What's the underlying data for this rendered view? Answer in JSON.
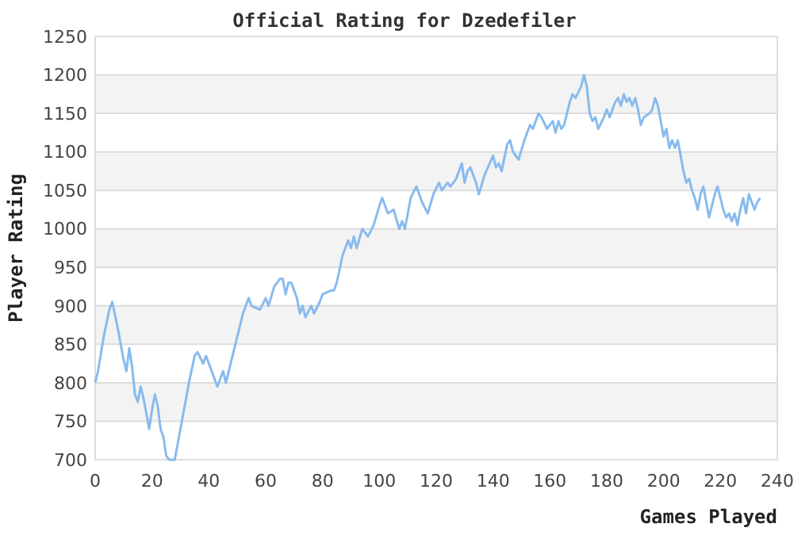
{
  "chart_data": {
    "type": "line",
    "title": "Official Rating for Dzedefiler",
    "xlabel": "Games Played",
    "ylabel": "Player Rating",
    "xlim": [
      0,
      240
    ],
    "xticks": [
      0,
      20,
      40,
      60,
      80,
      100,
      120,
      140,
      160,
      180,
      200,
      220,
      240
    ],
    "ylim": [
      700,
      1250
    ],
    "yticks": [
      700,
      750,
      800,
      850,
      900,
      950,
      1000,
      1050,
      1100,
      1150,
      1200,
      1250
    ],
    "grid": "y",
    "marker": "none",
    "line_style": "solid",
    "series": [
      {
        "color": "#88bbee",
        "x": [
          0,
          1,
          3,
          5,
          6,
          8,
          10,
          11,
          12,
          13,
          14,
          15,
          16,
          17,
          18,
          19,
          20,
          21,
          22,
          23,
          24,
          25,
          26,
          28,
          29,
          31,
          33,
          35,
          36,
          38,
          39,
          41,
          43,
          45,
          46,
          48,
          50,
          52,
          54,
          55,
          58,
          60,
          61,
          63,
          65,
          66,
          67,
          68,
          69,
          71,
          72,
          73,
          74,
          76,
          77,
          79,
          80,
          83,
          84,
          85,
          87,
          89,
          90,
          91,
          92,
          94,
          95,
          96,
          98,
          100,
          101,
          103,
          105,
          107,
          108,
          109,
          111,
          113,
          115,
          117,
          119,
          121,
          122,
          124,
          125,
          127,
          129,
          130,
          131,
          132,
          134,
          135,
          137,
          140,
          141,
          142,
          143,
          145,
          146,
          147,
          148,
          149,
          151,
          153,
          154,
          156,
          157,
          159,
          161,
          162,
          163,
          164,
          165,
          167,
          168,
          169,
          171,
          172,
          173,
          174,
          175,
          176,
          177,
          179,
          180,
          181,
          183,
          184,
          185,
          186,
          187,
          188,
          189,
          190,
          191,
          192,
          193,
          195,
          196,
          197,
          198,
          199,
          200,
          201,
          202,
          203,
          204,
          205,
          206,
          207,
          208,
          209,
          210,
          211,
          212,
          213,
          214,
          215,
          216,
          217,
          218,
          219,
          220,
          221,
          222,
          223,
          224,
          225,
          226,
          227,
          228,
          229,
          230,
          231,
          232,
          233,
          234
        ],
        "values": [
          800,
          815,
          860,
          895,
          905,
          870,
          830,
          815,
          845,
          820,
          785,
          775,
          795,
          780,
          760,
          740,
          765,
          785,
          770,
          740,
          730,
          705,
          700,
          700,
          720,
          760,
          800,
          835,
          840,
          825,
          835,
          815,
          795,
          815,
          800,
          830,
          860,
          890,
          910,
          900,
          895,
          910,
          900,
          925,
          935,
          935,
          915,
          930,
          930,
          910,
          890,
          900,
          885,
          900,
          890,
          905,
          915,
          920,
          920,
          930,
          965,
          985,
          975,
          990,
          975,
          1000,
          995,
          990,
          1005,
          1030,
          1040,
          1020,
          1025,
          1000,
          1010,
          1000,
          1040,
          1055,
          1035,
          1020,
          1045,
          1060,
          1050,
          1060,
          1055,
          1065,
          1085,
          1060,
          1075,
          1080,
          1060,
          1045,
          1070,
          1095,
          1080,
          1085,
          1075,
          1110,
          1115,
          1100,
          1095,
          1090,
          1115,
          1135,
          1130,
          1150,
          1145,
          1130,
          1140,
          1125,
          1140,
          1130,
          1135,
          1165,
          1175,
          1170,
          1185,
          1200,
          1185,
          1150,
          1140,
          1145,
          1130,
          1145,
          1155,
          1145,
          1165,
          1170,
          1160,
          1175,
          1165,
          1170,
          1160,
          1170,
          1155,
          1135,
          1145,
          1150,
          1155,
          1170,
          1160,
          1140,
          1120,
          1130,
          1105,
          1115,
          1105,
          1115,
          1095,
          1075,
          1060,
          1065,
          1050,
          1040,
          1025,
          1045,
          1055,
          1035,
          1015,
          1030,
          1045,
          1055,
          1040,
          1025,
          1015,
          1020,
          1010,
          1020,
          1005,
          1025,
          1040,
          1020,
          1045,
          1035,
          1025,
          1035,
          1040
        ]
      }
    ]
  }
}
